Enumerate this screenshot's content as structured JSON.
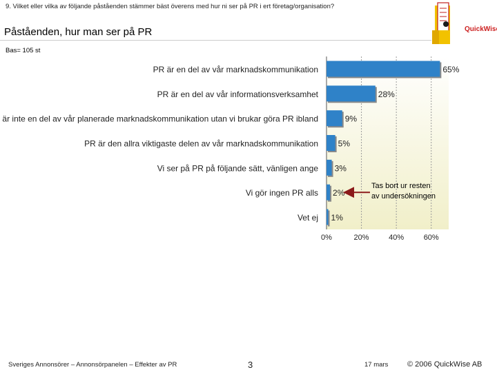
{
  "header": {
    "question": "9. Vilket eller vilka av följande påståenden stämmer bäst överens med hur ni ser på PR i ert företag/organisation?",
    "title": "Påståenden, hur man ser på PR",
    "base": "Bas= 105 st",
    "logo_text": "QuickWise"
  },
  "chart_data": {
    "type": "bar",
    "orientation": "horizontal",
    "categories": [
      "PR är en del av vår marknadskommunikation",
      "PR är en del av vår informationsverksamhet",
      "PR är inte en del av vår planerade marknadskommunikation utan vi brukar göra PR ibland",
      "PR är den allra viktigaste delen av vår marknadskommunikation",
      "Vi ser på PR på följande sätt, vänligen ange",
      "Vi gör ingen PR alls",
      "Vet ej"
    ],
    "values": [
      65,
      28,
      9,
      5,
      3,
      2,
      1
    ],
    "value_labels": [
      "65%",
      "28%",
      "9%",
      "5%",
      "3%",
      "2%",
      "1%"
    ],
    "xlim": [
      0,
      70
    ],
    "ticks": [
      0,
      20,
      40,
      60
    ],
    "tick_labels": [
      "0%",
      "20%",
      "40%",
      "60%"
    ],
    "grid": true,
    "bar_color": "#2f82c8",
    "plot_bg": "#f1efc9",
    "annotation": {
      "lines": [
        "Tas bort ur resten",
        "av undersökningen"
      ],
      "points_to": "Vi gör ingen PR alls",
      "arrow_color": "#8b1a1a"
    }
  },
  "footer": {
    "left": "Sveriges Annonsörer – Annonsörpanelen – Effekter av PR",
    "page": "3",
    "date": "17 mars",
    "copyright": "© 2006 QuickWise AB"
  }
}
